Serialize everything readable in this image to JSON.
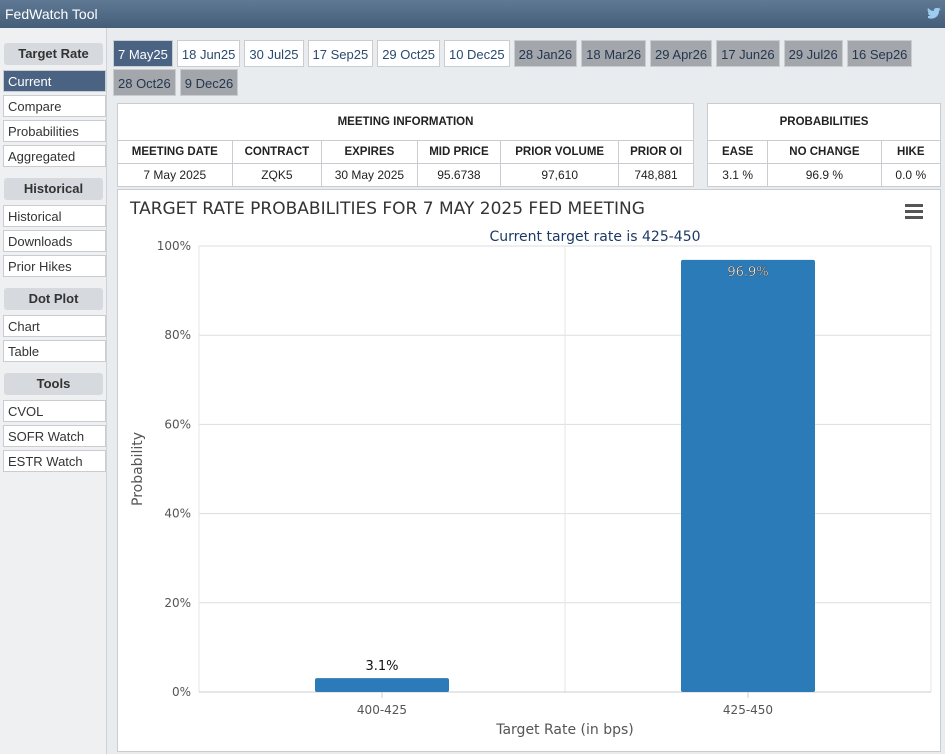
{
  "header": {
    "title": "FedWatch Tool"
  },
  "sidebar": {
    "sections": [
      {
        "title": "Target Rate",
        "items": [
          "Current",
          "Compare",
          "Probabilities",
          "Aggregated"
        ]
      },
      {
        "title": "Historical",
        "items": [
          "Historical",
          "Downloads",
          "Prior Hikes"
        ]
      },
      {
        "title": "Dot Plot",
        "items": [
          "Chart",
          "Table"
        ]
      },
      {
        "title": "Tools",
        "items": [
          "CVOL",
          "SOFR Watch",
          "ESTR Watch"
        ]
      }
    ]
  },
  "tabs": [
    "7 May25",
    "18 Jun25",
    "30 Jul25",
    "17 Sep25",
    "29 Oct25",
    "10 Dec25",
    "28 Jan26",
    "18 Mar26",
    "29 Apr26",
    "17 Jun26",
    "29 Jul26",
    "16 Sep26",
    "28 Oct26",
    "9 Dec26"
  ],
  "meeting_table": {
    "title": "MEETING INFORMATION",
    "columns": [
      "MEETING DATE",
      "CONTRACT",
      "EXPIRES",
      "MID PRICE",
      "PRIOR VOLUME",
      "PRIOR OI"
    ],
    "rows": [
      [
        "7 May 2025",
        "ZQK5",
        "30 May 2025",
        "95.6738",
        "97,610",
        "748,881"
      ]
    ]
  },
  "probabilities_table": {
    "title": "PROBABILITIES",
    "columns": [
      "EASE",
      "NO CHANGE",
      "HIKE"
    ],
    "rows": [
      [
        "3.1 %",
        "96.9 %",
        "0.0 %"
      ]
    ]
  },
  "chart_data": {
    "type": "bar",
    "title": "TARGET RATE PROBABILITIES FOR 7 MAY 2025 FED MEETING",
    "subtitle": "Current target rate is 425-450",
    "x_label": "Target Rate (in bps)",
    "y_label": "Probability",
    "categories": [
      "400-425",
      "425-450"
    ],
    "values": [
      3.1,
      96.9
    ],
    "value_labels": [
      "3.1%",
      "96.9%"
    ],
    "color": "#2b7bb9",
    "ylim": [
      0,
      100
    ],
    "yticks": [
      {
        "value": 0,
        "label": "0%"
      },
      {
        "value": 20,
        "label": "20%"
      },
      {
        "value": 40,
        "label": "40%"
      },
      {
        "value": 60,
        "label": "60%"
      },
      {
        "value": 80,
        "label": "80%"
      },
      {
        "value": 100,
        "label": "100%"
      }
    ],
    "grid": true
  }
}
